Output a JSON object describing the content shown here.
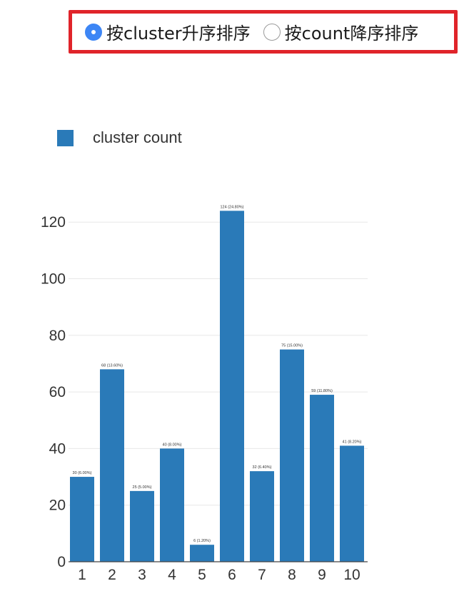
{
  "sort_options": [
    {
      "label": "按cluster升序排序",
      "checked": true
    },
    {
      "label": "按count降序排序",
      "checked": false
    }
  ],
  "colors": {
    "bar": "#2a7ab8",
    "highlight_border": "#e0242a",
    "radio_checked": "#3d86f5",
    "grid": "#e8e8e8"
  },
  "chart_data": {
    "type": "bar",
    "categories": [
      "1",
      "2",
      "3",
      "4",
      "5",
      "6",
      "7",
      "8",
      "9",
      "10"
    ],
    "series": [
      {
        "name": "cluster count",
        "values": [
          30,
          68,
          25,
          40,
          6,
          124,
          32,
          75,
          59,
          41
        ],
        "labels": [
          "30 (6.00%)",
          "68 (13.60%)",
          "25 (5.00%)",
          "40 (8.00%)",
          "6 (1.20%)",
          "124 (24.80%)",
          "32 (6.40%)",
          "75 (15.00%)",
          "59 (11.80%)",
          "41 (8.20%)"
        ]
      }
    ],
    "ylim": [
      0,
      130
    ],
    "yticks": [
      0,
      20,
      40,
      60,
      80,
      100,
      120
    ],
    "grid": true,
    "legend_position": "top-left"
  }
}
